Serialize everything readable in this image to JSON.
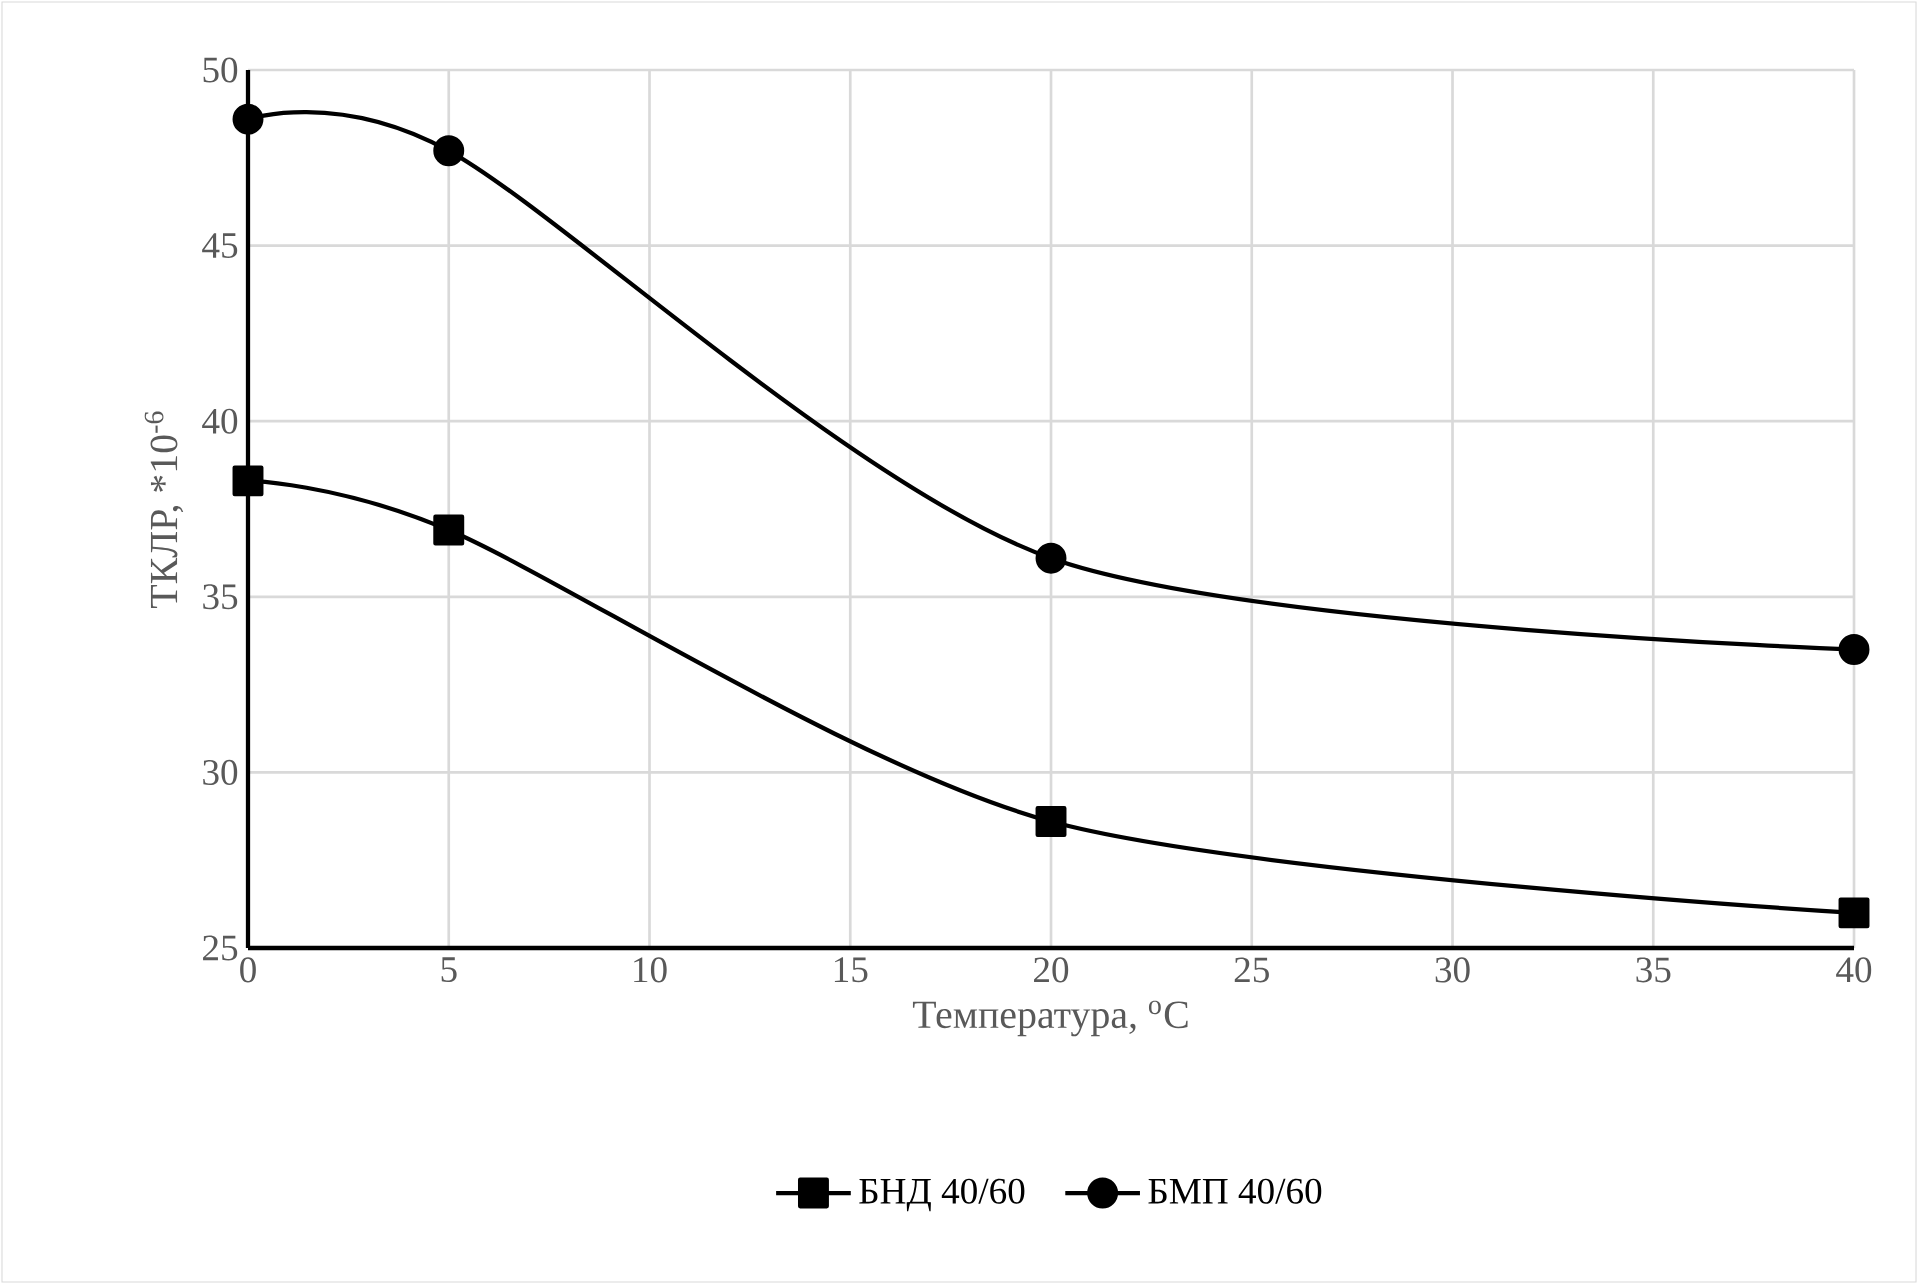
{
  "chart_data": {
    "type": "line",
    "xlabel": "Температура, $^{o}$C",
    "ylabel": "ТКЛР, *10$^{-6}$",
    "x": [
      0,
      5,
      20,
      40
    ],
    "series": [
      {
        "name": "БНД 40/60",
        "color": "#000000",
        "marker": "square",
        "values": [
          38.3,
          36.9,
          28.6,
          26.0
        ]
      },
      {
        "name": "БМП 40/60",
        "color": "#000000",
        "marker": "circle",
        "values": [
          48.6,
          47.7,
          36.1,
          33.5
        ]
      }
    ],
    "xlim": [
      0,
      40
    ],
    "xticks": [
      0,
      5,
      10,
      15,
      20,
      25,
      30,
      35,
      40
    ],
    "ylim": [
      25,
      50
    ],
    "yticks": [
      25,
      30,
      35,
      40,
      45,
      50
    ],
    "grid": true,
    "legend": "bottom",
    "line_style": "solid"
  }
}
